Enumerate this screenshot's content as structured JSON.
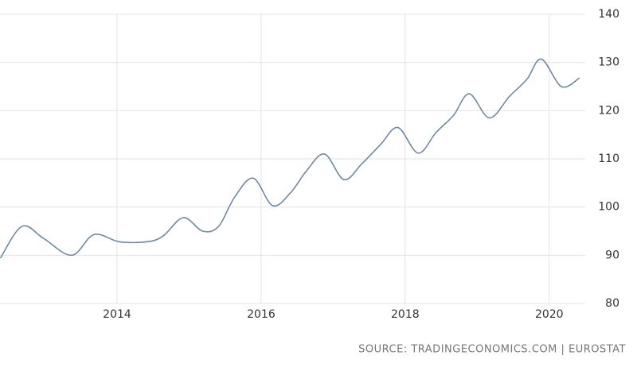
{
  "chart_data": {
    "type": "line",
    "source": "SOURCE: TRADINGECONOMICS.COM | EUROSTAT",
    "x": [
      2012.38,
      2012.68,
      2012.98,
      2013.37,
      2013.68,
      2014.03,
      2014.42,
      2014.64,
      2014.92,
      2015.19,
      2015.41,
      2015.63,
      2015.89,
      2016.16,
      2016.41,
      2016.63,
      2016.88,
      2017.15,
      2017.4,
      2017.66,
      2017.9,
      2018.18,
      2018.43,
      2018.67,
      2018.89,
      2019.17,
      2019.45,
      2019.69,
      2019.89,
      2020.17,
      2020.42
    ],
    "series": [
      {
        "color": "#6f88a3",
        "values": [
          89.4,
          96,
          93.5,
          90,
          94.3,
          92.8,
          92.8,
          94,
          97.8,
          95,
          96,
          102,
          106,
          100.3,
          103,
          107.5,
          111,
          105.7,
          109,
          113,
          116.5,
          111.2,
          115.5,
          119,
          123.5,
          118.5,
          123,
          126.5,
          130.7,
          125,
          126.8
        ]
      }
    ],
    "xlim": [
      2012.375,
      2020.5
    ],
    "xticks": [
      2014,
      2016,
      2018,
      2020
    ],
    "ylim": [
      80,
      140
    ],
    "yticks": [
      80,
      90,
      100,
      110,
      120,
      130,
      140
    ],
    "grid": true
  }
}
